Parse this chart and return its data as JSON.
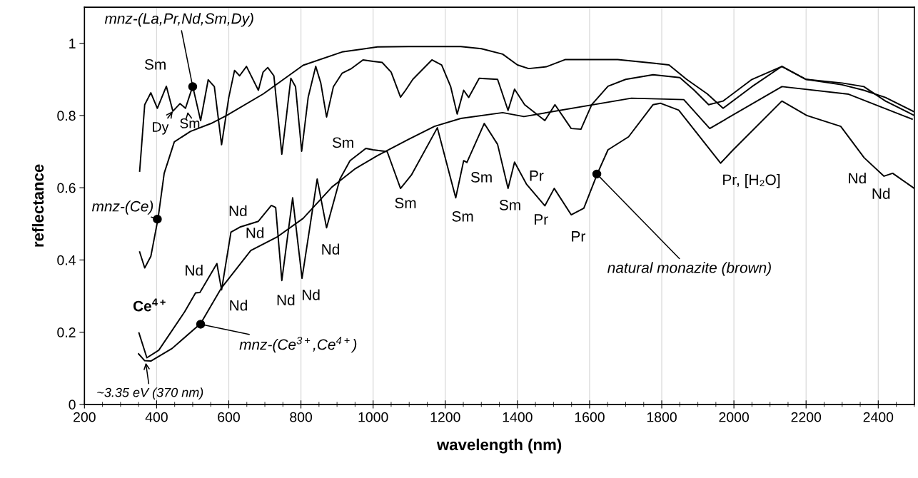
{
  "chart_data": {
    "type": "line",
    "xlabel": "wavelength (nm)",
    "ylabel": "reflectance",
    "xlim": [
      200,
      2500
    ],
    "xticks": [
      200,
      400,
      600,
      800,
      1000,
      1200,
      1400,
      1600,
      1800,
      2000,
      2200,
      2400
    ],
    "ylim": [
      0,
      1.1
    ],
    "yticks": [
      0,
      0.2,
      0.4,
      0.6,
      0.8,
      1
    ],
    "grid": "x",
    "marker": "none",
    "line_style": "solid",
    "series": [
      {
        "color": "#000000",
        "x": [
          353,
          367,
          384,
          402,
          427,
          445,
          465,
          480,
          500,
          522,
          543,
          560,
          580,
          600,
          616,
          630,
          649,
          682,
          695,
          708,
          725,
          747,
          760,
          772,
          785,
          802,
          820,
          841,
          855,
          871,
          890,
          914,
          940,
          972,
          1000,
          1025,
          1050,
          1076,
          1090,
          1110,
          1163,
          1190,
          1215,
          1233,
          1251,
          1265,
          1294,
          1345,
          1374,
          1392,
          1420,
          1476,
          1504,
          1549,
          1576,
          1606,
          1651,
          1700,
          1776,
          1850,
          1890,
          1930,
          1970,
          2050,
          2133,
          2200,
          2300,
          2360,
          2420,
          2500
        ],
        "values": [
          0.646,
          0.83,
          0.863,
          0.82,
          0.881,
          0.812,
          0.833,
          0.82,
          0.881,
          0.786,
          0.899,
          0.88,
          0.719,
          0.85,
          0.925,
          0.91,
          0.936,
          0.87,
          0.92,
          0.933,
          0.91,
          0.693,
          0.8,
          0.903,
          0.88,
          0.701,
          0.85,
          0.936,
          0.89,
          0.796,
          0.88,
          0.917,
          0.93,
          0.954,
          0.95,
          0.947,
          0.92,
          0.851,
          0.87,
          0.9,
          0.954,
          0.94,
          0.88,
          0.804,
          0.87,
          0.85,
          0.903,
          0.9,
          0.814,
          0.873,
          0.83,
          0.786,
          0.83,
          0.764,
          0.762,
          0.83,
          0.881,
          0.9,
          0.913,
          0.905,
          0.87,
          0.83,
          0.84,
          0.9,
          0.936,
          0.9,
          0.885,
          0.87,
          0.85,
          0.81
        ]
      },
      {
        "color": "#000000",
        "x": [
          353,
          367,
          384,
          404,
          421,
          449,
          494,
          551,
          594,
          696,
          806,
          914,
          1012,
          1098,
          1243,
          1300,
          1359,
          1400,
          1431,
          1480,
          1533,
          1678,
          1776,
          1820,
          1869,
          1926,
          1970,
          2050,
          2133,
          2200,
          2300,
          2360,
          2420,
          2500
        ],
        "values": [
          0.422,
          0.378,
          0.41,
          0.515,
          0.64,
          0.727,
          0.756,
          0.778,
          0.8,
          0.86,
          0.939,
          0.976,
          0.99,
          0.991,
          0.991,
          0.985,
          0.97,
          0.94,
          0.93,
          0.935,
          0.955,
          0.955,
          0.945,
          0.94,
          0.9,
          0.86,
          0.82,
          0.88,
          0.936,
          0.9,
          0.89,
          0.88,
          0.84,
          0.8
        ]
      },
      {
        "color": "#000000",
        "x": [
          351,
          373,
          406,
          478,
          508,
          520,
          567,
          580,
          606,
          631,
          682,
          718,
          730,
          747,
          777,
          803,
          845,
          871,
          908,
          936,
          980,
          1000,
          1039,
          1076,
          1106,
          1178,
          1229,
          1251,
          1260,
          1308,
          1345,
          1374,
          1392,
          1425,
          1476,
          1502,
          1549,
          1584,
          1622,
          1651,
          1708,
          1776,
          1796,
          1847,
          1963,
          1998,
          2133,
          2202,
          2296,
          2361,
          2416,
          2440,
          2500
        ],
        "values": [
          0.198,
          0.129,
          0.15,
          0.257,
          0.309,
          0.31,
          0.39,
          0.317,
          0.477,
          0.491,
          0.507,
          0.551,
          0.545,
          0.343,
          0.572,
          0.349,
          0.624,
          0.489,
          0.624,
          0.675,
          0.709,
          0.705,
          0.7,
          0.598,
          0.635,
          0.766,
          0.572,
          0.675,
          0.67,
          0.778,
          0.72,
          0.598,
          0.671,
          0.61,
          0.55,
          0.598,
          0.525,
          0.543,
          0.64,
          0.705,
          0.741,
          0.83,
          0.834,
          0.815,
          0.668,
          0.705,
          0.84,
          0.8,
          0.77,
          0.683,
          0.632,
          0.64,
          0.598
        ]
      },
      {
        "color": "#000000",
        "x": [
          350,
          367,
          384,
          443,
          522,
          580,
          661,
          733,
          806,
          886,
          951,
          1012,
          1098,
          1170,
          1243,
          1359,
          1418,
          1716,
          1861,
          1933,
          2133,
          2318,
          2494
        ],
        "values": [
          0.14,
          0.121,
          0.12,
          0.155,
          0.224,
          0.323,
          0.426,
          0.463,
          0.515,
          0.602,
          0.653,
          0.689,
          0.734,
          0.77,
          0.792,
          0.808,
          0.797,
          0.848,
          0.844,
          0.764,
          0.88,
          0.859,
          0.79
        ]
      }
    ],
    "annotations": [
      {
        "text": "mnz-(La,Pr,Nd,Sm,Dy)",
        "x": 500,
        "y": 0.88
      },
      {
        "text": "mnz-(Ce)",
        "x": 402,
        "y": 0.513
      },
      {
        "text": "mnz-(Ce$^{3+}$,Ce$^{4+}$)",
        "x": 522,
        "y": 0.222
      },
      {
        "text": "natural monazite (brown)",
        "x": 1620,
        "y": 0.638
      },
      {
        "text": "~3.35 eV (370 nm)",
        "x": 370,
        "y": 0.115
      },
      {
        "text": "Dy",
        "x": 445,
        "y": 0.812
      },
      {
        "text": "Sm",
        "x": 486,
        "y": 0.81
      },
      {
        "text": "Ce$^{4+}$",
        "x": 430,
        "y": 0.186
      },
      {
        "text": "Sm",
        "x": 402,
        "y": 0.82
      },
      {
        "text": "Nd",
        "x": 520,
        "y": 0.31
      },
      {
        "text": "Nd",
        "x": 631,
        "y": 0.491
      },
      {
        "text": "Nd",
        "x": 700,
        "y": 0.529
      },
      {
        "text": "Nd",
        "x": 580,
        "y": 0.317
      },
      {
        "text": "Nd",
        "x": 747,
        "y": 0.343
      },
      {
        "text": "Nd",
        "x": 803,
        "y": 0.349
      },
      {
        "text": "Nd",
        "x": 871,
        "y": 0.489
      },
      {
        "text": "Sm",
        "x": 936,
        "y": 0.675
      },
      {
        "text": "Sm",
        "x": 1076,
        "y": 0.598
      },
      {
        "text": "Sm",
        "x": 1229,
        "y": 0.572
      },
      {
        "text": "Sm",
        "x": 1251,
        "y": 0.675
      },
      {
        "text": "Sm",
        "x": 1374,
        "y": 0.598
      },
      {
        "text": "Pr",
        "x": 1392,
        "y": 0.671
      },
      {
        "text": "Pr",
        "x": 1476,
        "y": 0.55
      },
      {
        "text": "Pr",
        "x": 1549,
        "y": 0.525
      },
      {
        "text": "Pr, [H₂O]",
        "x": 1963,
        "y": 0.668
      },
      {
        "text": "Nd",
        "x": 2361,
        "y": 0.683
      },
      {
        "text": "Nd",
        "x": 2416,
        "y": 0.632
      }
    ]
  }
}
